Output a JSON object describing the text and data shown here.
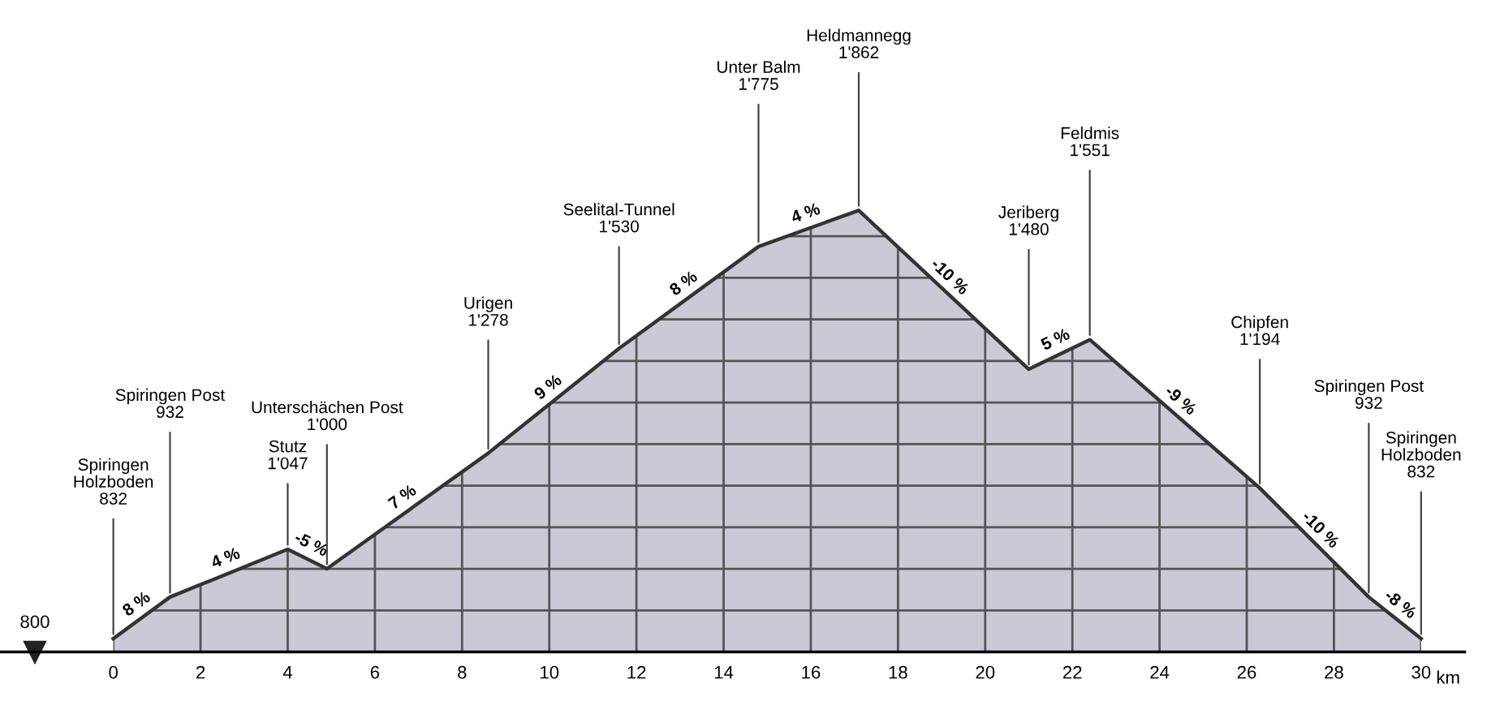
{
  "chart_data": {
    "type": "area",
    "x": [
      0,
      1.3,
      4.0,
      4.9,
      8.6,
      11.6,
      14.8,
      17.1,
      21.0,
      22.4,
      26.3,
      28.8,
      30
    ],
    "series": [
      {
        "color": "#c9cad6",
        "values": [
          832,
          932,
          1047,
          1000,
          1278,
          1530,
          1775,
          1862,
          1480,
          1551,
          1194,
          932,
          832
        ],
        "value_labels": [
          "832",
          "932",
          "1'047",
          "1'000",
          "1'278",
          "1'530",
          "1'775",
          "1'862",
          "1'480",
          "1'551",
          "1'194",
          "932",
          "832"
        ]
      }
    ],
    "xlabel": "km",
    "xlim": [
      -2.6,
      31
    ],
    "xticks": [
      0,
      2,
      4,
      6,
      8,
      10,
      12,
      14,
      16,
      18,
      20,
      22,
      24,
      26,
      28,
      30
    ],
    "ylim": [
      800,
      2250
    ],
    "yticks": [
      {
        "value": 800,
        "label": null
      },
      {
        "value": 900,
        "label": null
      },
      {
        "value": 1000,
        "label": null
      },
      {
        "value": 1100,
        "label": null
      },
      {
        "value": 1200,
        "label": null
      },
      {
        "value": 1300,
        "label": null
      },
      {
        "value": 1400,
        "label": null
      },
      {
        "value": 1500,
        "label": null
      },
      {
        "value": 1600,
        "label": null
      },
      {
        "value": 1700,
        "label": null
      },
      {
        "value": 1800,
        "label": null
      }
    ],
    "grid": true,
    "annotations": [
      {
        "text": "800",
        "x": -1.8,
        "y": 800
      },
      "Spiringen\nHolzboden",
      "Spiringen Post",
      "Stutz",
      "Unterschächen Post",
      "Urigen",
      "Seelital-Tunnel",
      "Unter Balm",
      "Heldmannegg",
      "Jeriberg",
      "Feldmis",
      "Chipfen",
      "Spiringen Post",
      "Spiringen\nHolzboden",
      {
        "text": "8 %",
        "x": 0.65,
        "y": 882
      },
      {
        "text": "4 %",
        "x": 2.65,
        "y": 990
      },
      {
        "text": "-5 %",
        "x": 4.45,
        "y": 1024
      },
      {
        "text": "7 %",
        "x": 6.75,
        "y": 1139
      },
      {
        "text": "9 %",
        "x": 10.1,
        "y": 1404
      },
      {
        "text": "8 %",
        "x": 13.2,
        "y": 1653
      },
      {
        "text": "4 %",
        "x": 15.95,
        "y": 1819
      },
      {
        "text": "-10 %",
        "x": 19.05,
        "y": 1671
      },
      {
        "text": "5 %",
        "x": 21.7,
        "y": 1516
      },
      {
        "text": "-9 %",
        "x": 24.35,
        "y": 1373
      },
      {
        "text": "-10 %",
        "x": 27.55,
        "y": 1063
      },
      {
        "text": "-8 %",
        "x": 29.4,
        "y": 882
      }
    ]
  }
}
